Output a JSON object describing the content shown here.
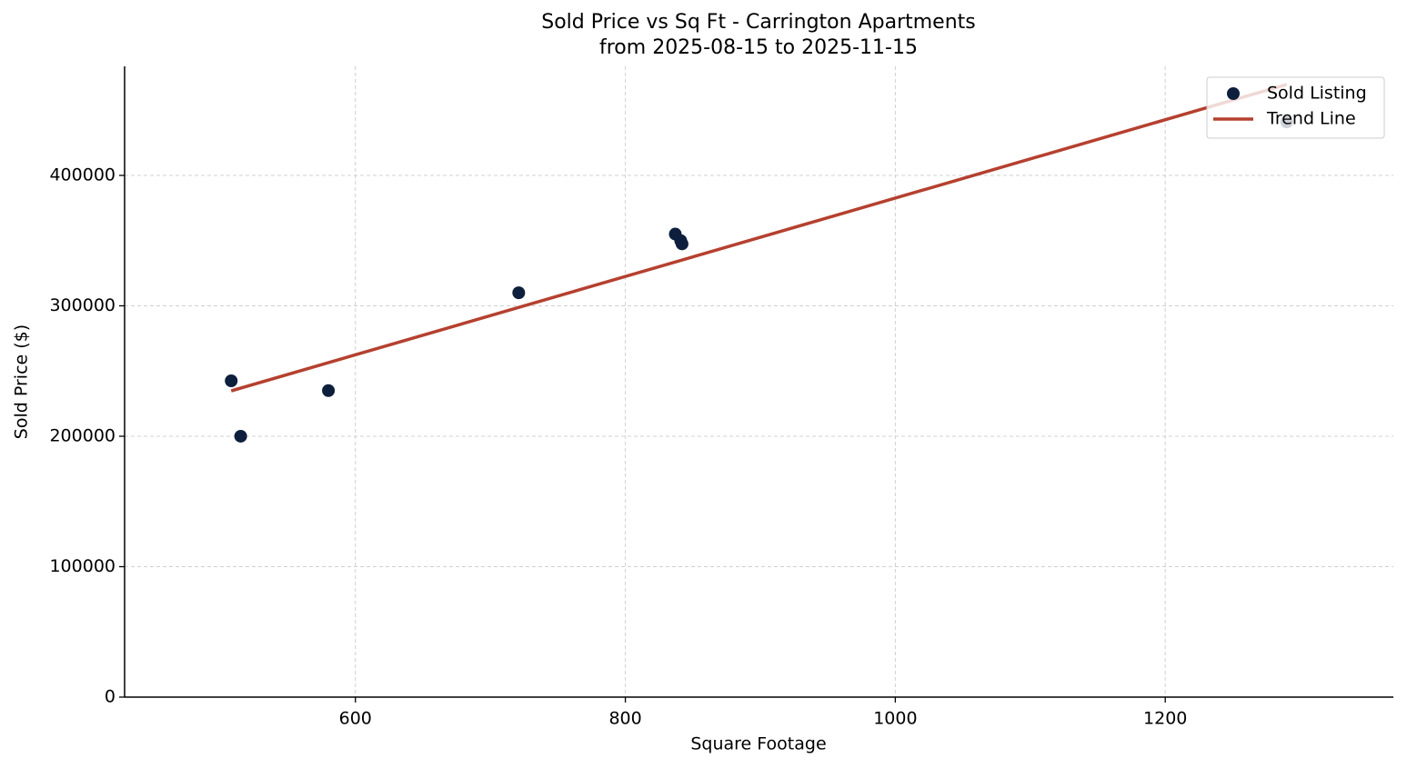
{
  "chart_data": {
    "type": "scatter",
    "title": "Sold Price vs Sq Ft - Carrington Apartments",
    "subtitle": "from 2025-08-15 to 2025-11-15",
    "x_label": "Square Footage",
    "y_label": "Sold Price ($)",
    "series": [
      {
        "name": "Sold Listing",
        "type": "scatter",
        "color": "#0d1f3c",
        "x": [
          508,
          515,
          580,
          721,
          837,
          841,
          842,
          1290
        ],
        "values": [
          242500,
          200000,
          235000,
          310000,
          355000,
          350000,
          347500,
          441000
        ]
      },
      {
        "name": "Trend Line",
        "type": "line",
        "color": "#b5402f",
        "x": [
          508,
          1290
        ],
        "values": [
          234800,
          469700
        ]
      }
    ],
    "xlim": [
      429,
      1369
    ],
    "xticks": [
      600,
      800,
      1000,
      1200
    ],
    "ylim": [
      0,
      483600
    ],
    "yticks": [
      0,
      100000,
      200000,
      300000,
      400000
    ],
    "grid": true,
    "legend": "upper-right"
  }
}
